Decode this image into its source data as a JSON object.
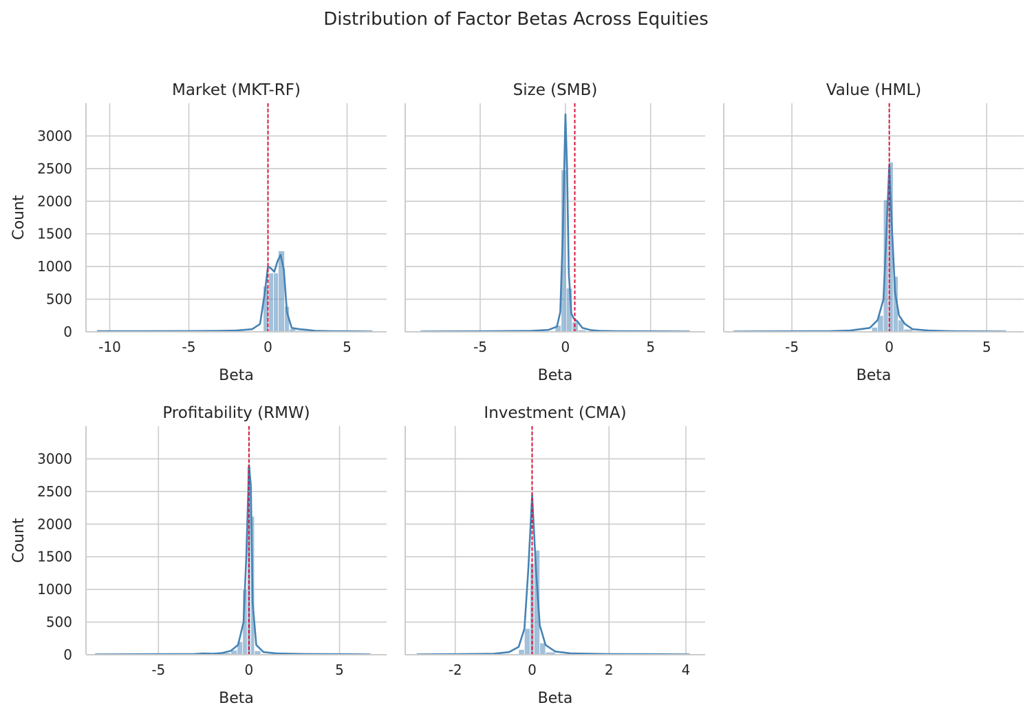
{
  "figure": {
    "title": "Distribution of Factor Betas Across Equities"
  },
  "style": {
    "hist_color": "#4682b4",
    "kde_color": "#4682b4",
    "mean_line_color": "#dc143c",
    "grid_color": "#cccccc",
    "axis_color": "#cccccc"
  },
  "chart_data": [
    {
      "type": "bar",
      "title": "Market (MKT-RF)",
      "xlabel": "Beta",
      "ylabel": "Count",
      "xlim": [
        -11.5,
        7.5
      ],
      "ylim": [
        0,
        3500
      ],
      "xticks": [
        -10,
        -5,
        0,
        5
      ],
      "yticks": [
        0,
        500,
        1000,
        1500,
        2000,
        2500,
        3000
      ],
      "grid": true,
      "mean_line": 0,
      "bins": [
        {
          "x0": -0.3,
          "x1": 0.05,
          "count": 700
        },
        {
          "x0": 0.05,
          "x1": 0.35,
          "count": 900
        },
        {
          "x0": 0.35,
          "x1": 0.65,
          "count": 900
        },
        {
          "x0": 0.65,
          "x1": 1.05,
          "count": 1240
        },
        {
          "x0": 1.05,
          "x1": 1.35,
          "count": 390
        },
        {
          "x0": 1.35,
          "x1": 1.75,
          "count": 45
        },
        {
          "x0": 1.75,
          "x1": 2.5,
          "count": 20
        }
      ],
      "kde": {
        "x": [
          -10.8,
          -8,
          -5,
          -3,
          -2,
          -1,
          -0.5,
          -0.2,
          0,
          0.2,
          0.4,
          0.6,
          0.8,
          1.0,
          1.2,
          1.5,
          2.0,
          2.5,
          3.0,
          4.0,
          5.0,
          6.6
        ],
        "y": [
          10,
          10,
          12,
          15,
          20,
          40,
          120,
          600,
          1000,
          970,
          920,
          1080,
          1180,
          960,
          300,
          60,
          40,
          30,
          15,
          10,
          8,
          5
        ]
      }
    },
    {
      "type": "bar",
      "title": "Size (SMB)",
      "xlabel": "Beta",
      "ylabel": "",
      "xlim": [
        -9.4,
        8.2
      ],
      "ylim": [
        0,
        3500
      ],
      "xticks": [
        -5,
        0,
        5
      ],
      "yticks": [
        0,
        500,
        1000,
        1500,
        2000,
        2500,
        3000
      ],
      "grid": true,
      "mean_line": 0.55,
      "bins": [
        {
          "x0": -0.6,
          "x1": -0.25,
          "count": 100
        },
        {
          "x0": -0.25,
          "x1": 0.05,
          "count": 2480
        },
        {
          "x0": 0.05,
          "x1": 0.4,
          "count": 670
        },
        {
          "x0": 0.4,
          "x1": 0.75,
          "count": 150
        },
        {
          "x0": 0.75,
          "x1": 1.2,
          "count": 30
        }
      ],
      "kde": {
        "x": [
          -8.5,
          -5,
          -2,
          -1,
          -0.5,
          -0.3,
          -0.15,
          0,
          0.1,
          0.2,
          0.35,
          0.5,
          0.7,
          1.0,
          1.5,
          2.0,
          3.0,
          5.0,
          7.3
        ],
        "y": [
          5,
          8,
          15,
          30,
          80,
          300,
          1500,
          3330,
          2500,
          900,
          280,
          200,
          160,
          60,
          25,
          15,
          10,
          8,
          5
        ]
      }
    },
    {
      "type": "bar",
      "title": "Value (HML)",
      "xlabel": "Beta",
      "ylabel": "",
      "xlim": [
        -8.5,
        6.9
      ],
      "ylim": [
        0,
        3500
      ],
      "xticks": [
        -5,
        0,
        5
      ],
      "yticks": [
        0,
        500,
        1000,
        1500,
        2000,
        2500,
        3000
      ],
      "grid": true,
      "mean_line": 0,
      "bins": [
        {
          "x0": -0.9,
          "x1": -0.6,
          "count": 70
        },
        {
          "x0": -0.6,
          "x1": -0.3,
          "count": 250
        },
        {
          "x0": -0.3,
          "x1": -0.05,
          "count": 2020
        },
        {
          "x0": -0.05,
          "x1": 0.2,
          "count": 2600
        },
        {
          "x0": 0.2,
          "x1": 0.45,
          "count": 850
        },
        {
          "x0": 0.45,
          "x1": 0.75,
          "count": 180
        },
        {
          "x0": 0.75,
          "x1": 1.2,
          "count": 40
        }
      ],
      "kde": {
        "x": [
          -8,
          -5,
          -3,
          -2,
          -1,
          -0.6,
          -0.3,
          -0.15,
          0,
          0.15,
          0.3,
          0.5,
          0.8,
          1.2,
          2,
          3,
          4,
          6
        ],
        "y": [
          5,
          8,
          12,
          20,
          60,
          180,
          500,
          1500,
          2550,
          1500,
          600,
          250,
          120,
          40,
          20,
          12,
          8,
          5
        ]
      }
    },
    {
      "type": "bar",
      "title": "Profitability (RMW)",
      "xlabel": "Beta",
      "ylabel": "Count",
      "xlim": [
        -9.0,
        7.6
      ],
      "ylim": [
        0,
        3500
      ],
      "xticks": [
        -5,
        0,
        5
      ],
      "yticks": [
        0,
        500,
        1000,
        1500,
        2000,
        2500,
        3000
      ],
      "grid": true,
      "mean_line": 0,
      "bins": [
        {
          "x0": -1.5,
          "x1": -1.0,
          "count": 30
        },
        {
          "x0": -1.0,
          "x1": -0.65,
          "count": 70
        },
        {
          "x0": -0.65,
          "x1": -0.35,
          "count": 200
        },
        {
          "x0": -0.35,
          "x1": -0.1,
          "count": 1000
        },
        {
          "x0": -0.1,
          "x1": 0.1,
          "count": 2880
        },
        {
          "x0": 0.1,
          "x1": 0.3,
          "count": 2120
        },
        {
          "x0": 0.3,
          "x1": 0.65,
          "count": 60
        }
      ],
      "kde": {
        "x": [
          -8.5,
          -5,
          -3,
          -2.5,
          -2,
          -1.5,
          -1,
          -0.6,
          -0.3,
          -0.15,
          0,
          0.1,
          0.2,
          0.4,
          0.8,
          1.5,
          3,
          5,
          6.7
        ],
        "y": [
          5,
          8,
          12,
          20,
          15,
          25,
          60,
          150,
          500,
          1500,
          2900,
          2600,
          800,
          150,
          40,
          20,
          12,
          8,
          5
        ]
      }
    },
    {
      "type": "bar",
      "title": "Investment (CMA)",
      "xlabel": "Beta",
      "ylabel": "",
      "xlim": [
        -3.3,
        4.5
      ],
      "ylim": [
        0,
        3500
      ],
      "xticks": [
        -2,
        0,
        2,
        4
      ],
      "yticks": [
        0,
        500,
        1000,
        1500,
        2000,
        2500,
        3000
      ],
      "grid": true,
      "mean_line": 0,
      "bins": [
        {
          "x0": -0.35,
          "x1": -0.2,
          "count": 80
        },
        {
          "x0": -0.2,
          "x1": -0.05,
          "count": 400
        },
        {
          "x0": -0.05,
          "x1": 0.05,
          "count": 1400
        },
        {
          "x0": 0.05,
          "x1": 0.2,
          "count": 1600
        },
        {
          "x0": 0.2,
          "x1": 0.35,
          "count": 180
        },
        {
          "x0": 0.35,
          "x1": 0.6,
          "count": 40
        }
      ],
      "kde": {
        "x": [
          -3.0,
          -2,
          -1,
          -0.6,
          -0.35,
          -0.2,
          -0.1,
          0,
          0.1,
          0.2,
          0.35,
          0.6,
          1,
          2,
          3,
          4.1
        ],
        "y": [
          5,
          8,
          15,
          40,
          120,
          400,
          1300,
          2450,
          1300,
          450,
          150,
          50,
          20,
          10,
          8,
          5
        ]
      }
    }
  ]
}
